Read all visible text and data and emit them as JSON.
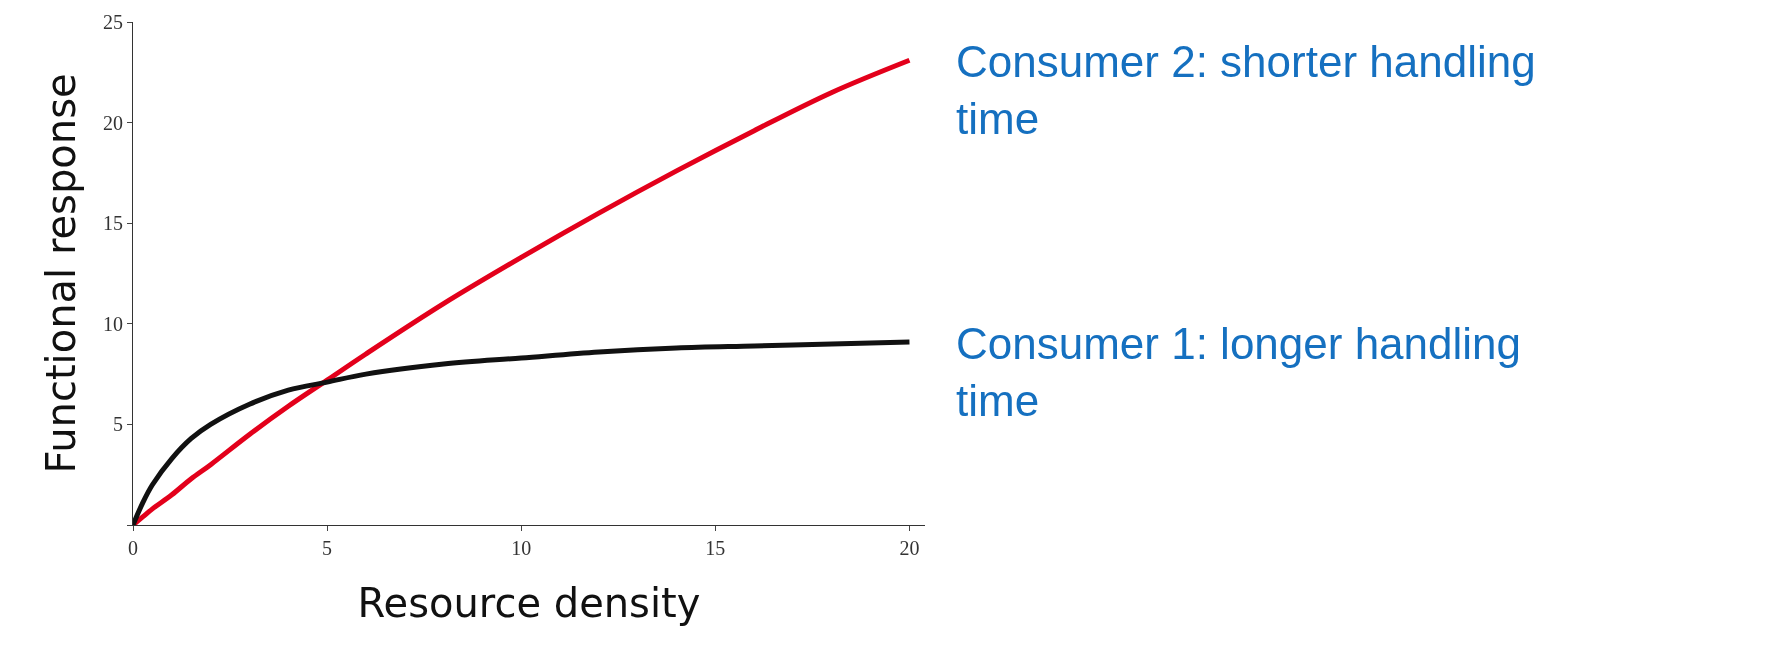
{
  "chart_data": {
    "type": "line",
    "xlabel": "Resource density",
    "ylabel": "Functional response",
    "x": [
      0,
      0.25,
      0.5,
      1,
      1.5,
      2,
      3,
      4,
      5,
      6,
      8,
      10,
      12,
      14,
      16,
      18,
      20
    ],
    "series": [
      {
        "color": "#e3001b",
        "values": [
          0,
          0.4,
          0.8,
          1.5,
          2.3,
          3.0,
          4.5,
          5.9,
          7.2,
          8.5,
          11.0,
          13.3,
          15.5,
          17.6,
          19.6,
          21.5,
          23.1
        ]
      },
      {
        "color": "#111111",
        "values": [
          0,
          1.1,
          2.0,
          3.3,
          4.3,
          5.0,
          6.0,
          6.7,
          7.1,
          7.5,
          8.0,
          8.3,
          8.6,
          8.8,
          8.9,
          9.0,
          9.1
        ]
      }
    ],
    "xlim": [
      0,
      20.4
    ],
    "ylim": [
      0,
      25
    ],
    "xticks": [
      0,
      5,
      10,
      15,
      20
    ],
    "yticks": [
      {
        "value": 0,
        "label": null
      },
      5,
      10,
      15,
      20,
      25
    ],
    "legend": false,
    "marker": "none",
    "line_style": "solid",
    "annotations": [
      {
        "text": "Consumer 2: shorter handling\ntime",
        "x": 20,
        "y": 23.1
      },
      {
        "text": "Consumer 1: longer handling\ntime",
        "x": 20,
        "y": 9.1
      }
    ]
  }
}
